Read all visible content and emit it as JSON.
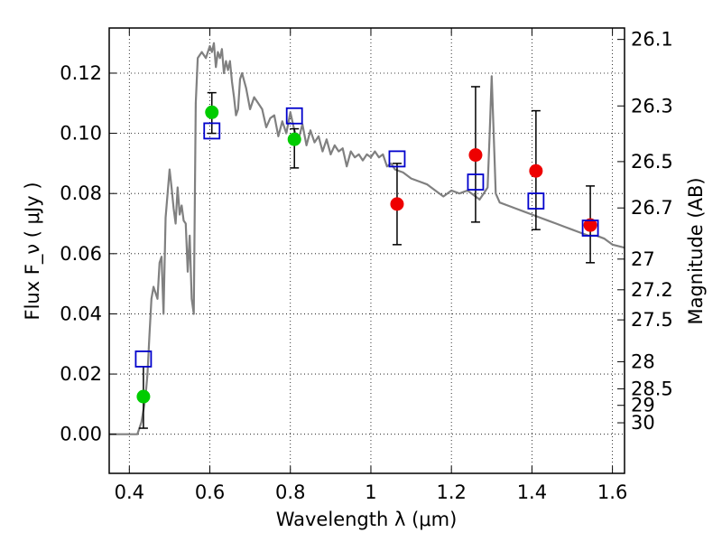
{
  "chart_data": {
    "type": "scatter",
    "xlabel": "Wavelength  λ (μm)",
    "ylabel": "Flux  F_ν  ( μJy )",
    "ylabel_right": "Magnitude (AB)",
    "xlim": [
      0.35,
      1.63
    ],
    "ylim": [
      -0.013,
      0.135
    ],
    "grid": true,
    "x_ticks": [
      {
        "value": 0.4,
        "label": "0.4"
      },
      {
        "value": 0.6,
        "label": "0.6"
      },
      {
        "value": 0.8,
        "label": "0.8"
      },
      {
        "value": 1.0,
        "label": "1"
      },
      {
        "value": 1.2,
        "label": "1.2"
      },
      {
        "value": 1.4,
        "label": "1.4"
      },
      {
        "value": 1.6,
        "label": "1.6"
      }
    ],
    "y_ticks": [
      {
        "value": 0.0,
        "label": "0.00"
      },
      {
        "value": 0.02,
        "label": "0.02"
      },
      {
        "value": 0.04,
        "label": "0.04"
      },
      {
        "value": 0.06,
        "label": "0.06"
      },
      {
        "value": 0.08,
        "label": "0.08"
      },
      {
        "value": 0.1,
        "label": "0.10"
      },
      {
        "value": 0.12,
        "label": "0.12"
      }
    ],
    "right_ticks": [
      {
        "flux": 0.1312,
        "label": "26.1"
      },
      {
        "flux": 0.1091,
        "label": "26.3"
      },
      {
        "flux": 0.0906,
        "label": "26.5"
      },
      {
        "flux": 0.0752,
        "label": "26.7"
      },
      {
        "flux": 0.0582,
        "label": "27"
      },
      {
        "flux": 0.048,
        "label": "27.2"
      },
      {
        "flux": 0.038,
        "label": "27.5"
      },
      {
        "flux": 0.0241,
        "label": "28"
      },
      {
        "flux": 0.0151,
        "label": "28.5"
      },
      {
        "flux": 0.0096,
        "label": "29"
      },
      {
        "flux": 0.0038,
        "label": "30"
      }
    ],
    "series": [
      {
        "kind": "model_sed",
        "color": "#808080",
        "x": [
          0.35,
          0.42,
          0.43,
          0.44,
          0.445,
          0.45,
          0.455,
          0.46,
          0.47,
          0.475,
          0.48,
          0.485,
          0.49,
          0.5,
          0.505,
          0.51,
          0.515,
          0.52,
          0.525,
          0.53,
          0.535,
          0.54,
          0.545,
          0.55,
          0.555,
          0.56,
          0.565,
          0.57,
          0.58,
          0.59,
          0.6,
          0.605,
          0.61,
          0.615,
          0.62,
          0.625,
          0.63,
          0.635,
          0.64,
          0.645,
          0.65,
          0.655,
          0.66,
          0.665,
          0.67,
          0.675,
          0.68,
          0.69,
          0.7,
          0.71,
          0.72,
          0.73,
          0.74,
          0.75,
          0.76,
          0.77,
          0.78,
          0.79,
          0.8,
          0.81,
          0.82,
          0.83,
          0.84,
          0.85,
          0.86,
          0.87,
          0.88,
          0.89,
          0.9,
          0.91,
          0.92,
          0.93,
          0.94,
          0.95,
          0.96,
          0.97,
          0.98,
          0.99,
          1.0,
          1.01,
          1.02,
          1.03,
          1.04,
          1.05,
          1.06,
          1.08,
          1.1,
          1.12,
          1.14,
          1.16,
          1.18,
          1.2,
          1.22,
          1.24,
          1.26,
          1.27,
          1.28,
          1.29,
          1.295,
          1.3,
          1.305,
          1.31,
          1.32,
          1.34,
          1.36,
          1.38,
          1.4,
          1.42,
          1.44,
          1.46,
          1.48,
          1.5,
          1.52,
          1.54,
          1.56,
          1.58,
          1.6,
          1.63
        ],
        "y": [
          0.0,
          0.0,
          0.004,
          0.012,
          0.02,
          0.033,
          0.045,
          0.049,
          0.045,
          0.057,
          0.059,
          0.04,
          0.072,
          0.088,
          0.082,
          0.075,
          0.07,
          0.082,
          0.073,
          0.076,
          0.071,
          0.07,
          0.054,
          0.066,
          0.045,
          0.04,
          0.11,
          0.125,
          0.127,
          0.125,
          0.129,
          0.127,
          0.13,
          0.122,
          0.127,
          0.125,
          0.128,
          0.12,
          0.124,
          0.121,
          0.124,
          0.117,
          0.112,
          0.106,
          0.108,
          0.118,
          0.12,
          0.115,
          0.108,
          0.112,
          0.11,
          0.108,
          0.102,
          0.105,
          0.106,
          0.099,
          0.104,
          0.1,
          0.107,
          0.101,
          0.098,
          0.103,
          0.096,
          0.101,
          0.097,
          0.099,
          0.094,
          0.098,
          0.093,
          0.096,
          0.094,
          0.095,
          0.089,
          0.094,
          0.092,
          0.093,
          0.091,
          0.093,
          0.092,
          0.094,
          0.092,
          0.093,
          0.089,
          0.09,
          0.088,
          0.087,
          0.085,
          0.084,
          0.083,
          0.081,
          0.079,
          0.081,
          0.08,
          0.081,
          0.079,
          0.078,
          0.08,
          0.082,
          0.1,
          0.119,
          0.1,
          0.08,
          0.077,
          0.076,
          0.075,
          0.074,
          0.073,
          0.072,
          0.071,
          0.07,
          0.069,
          0.068,
          0.067,
          0.066,
          0.066,
          0.065,
          0.063,
          0.062
        ]
      },
      {
        "kind": "green_points",
        "color": "#00cc00",
        "x": [
          0.435,
          0.605,
          0.81
        ],
        "y": [
          0.0125,
          0.107,
          0.098
        ],
        "yerr_low": [
          0.002,
          0.1,
          0.0885
        ],
        "yerr_high": [
          0.0225,
          0.1135,
          0.1015
        ]
      },
      {
        "kind": "red_points",
        "color": "#ee0000",
        "x": [
          1.065,
          1.26,
          1.41,
          1.545
        ],
        "y": [
          0.0765,
          0.0928,
          0.0875,
          0.0695
        ],
        "yerr_low": [
          0.063,
          0.0705,
          0.068,
          0.057
        ],
        "yerr_high": [
          0.09,
          0.1155,
          0.1075,
          0.0825
        ]
      },
      {
        "kind": "blue_squares",
        "color": "#0000cc",
        "x": [
          0.435,
          0.605,
          0.81,
          1.065,
          1.26,
          1.41,
          1.545
        ],
        "y": [
          0.025,
          0.1008,
          0.1058,
          0.0915,
          0.0838,
          0.0775,
          0.0685
        ]
      }
    ]
  }
}
